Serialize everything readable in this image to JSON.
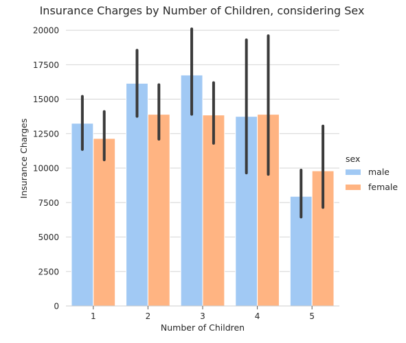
{
  "chart_data": {
    "type": "bar",
    "title": "Insurance Charges by Number of Children, considering Sex",
    "xlabel": "Number of Children",
    "ylabel": "Insurance Charges",
    "categories": [
      "1",
      "2",
      "3",
      "4",
      "5"
    ],
    "ylim": [
      0,
      20800
    ],
    "yticks": [
      0,
      2500,
      5000,
      7500,
      10000,
      12500,
      15000,
      17500,
      20000
    ],
    "ytick_labels": [
      "0",
      "2500",
      "5000",
      "7500",
      "10000",
      "12500",
      "15000",
      "17500",
      "20000"
    ],
    "grid": "horizontal",
    "legend": {
      "title": "sex",
      "placement": "right"
    },
    "series": [
      {
        "name": "male",
        "color": "#a1c9f4",
        "values": [
          13250,
          16150,
          16750,
          13750,
          7950
        ],
        "ci_low": [
          11350,
          13750,
          13900,
          9650,
          6450
        ],
        "ci_high": [
          15200,
          18550,
          20100,
          19300,
          9850
        ]
      },
      {
        "name": "female",
        "color": "#ffb482",
        "values": [
          12150,
          13900,
          13850,
          13900,
          9800
        ],
        "ci_low": [
          10600,
          12100,
          11800,
          9550,
          7150
        ],
        "ci_high": [
          14100,
          16050,
          16200,
          19600,
          13050
        ]
      }
    ],
    "errorbar_color": "#3a3a3a"
  }
}
